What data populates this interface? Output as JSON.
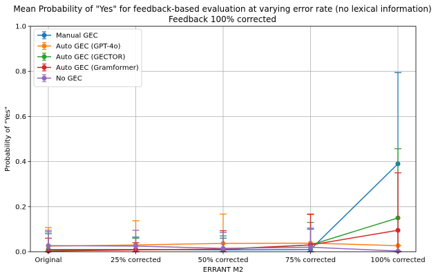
{
  "chart_data": {
    "type": "line",
    "title": "Mean Probability of \"Yes\" for feedback-based evaluation at varying error rate (no lexical information)",
    "subtitle": "Feedback 100% corrected",
    "xlabel": "ERRANT M2",
    "ylabel": "Probability of \"Yes\"",
    "categories": [
      "Original",
      "25% corrected",
      "50% corrected",
      "75% corrected",
      "100% corrected"
    ],
    "ylim": [
      0,
      1.0
    ],
    "yticks": [
      "0.0",
      "0.2",
      "0.4",
      "0.6",
      "0.8",
      "1.0"
    ],
    "grid": true,
    "legend_position": "top-left",
    "error_bars": true,
    "series": [
      {
        "name": "Manual GEC",
        "color": "#1f77b4",
        "values": [
          0.01,
          0.01,
          0.008,
          0.01,
          0.39
        ],
        "err_low": [
          0.0,
          0.0,
          0.0,
          0.0,
          0.0
        ],
        "err_high": [
          0.08,
          0.065,
          0.06,
          0.1,
          0.795
        ]
      },
      {
        "name": "Auto GEC (GPT-4o)",
        "color": "#ff7f0e",
        "values": [
          0.025,
          0.03,
          0.037,
          0.038,
          0.027
        ],
        "err_low": [
          0.0,
          0.0,
          0.0,
          0.0,
          0.0
        ],
        "err_high": [
          0.107,
          0.137,
          0.167,
          0.165,
          0.027
        ]
      },
      {
        "name": "Auto GEC (GECTOR)",
        "color": "#2ca02c",
        "values": [
          0.008,
          0.01,
          0.01,
          0.03,
          0.15
        ],
        "err_low": [
          0.0,
          0.0,
          0.0,
          0.0,
          0.0
        ],
        "err_high": [
          0.088,
          0.06,
          0.07,
          0.13,
          0.457
        ]
      },
      {
        "name": "Auto GEC (Gramformer)",
        "color": "#d62728",
        "values": [
          0.003,
          0.008,
          0.012,
          0.03,
          0.095
        ],
        "err_low": [
          0.0,
          0.0,
          0.0,
          0.0,
          0.0
        ],
        "err_high": [
          0.06,
          0.04,
          0.093,
          0.167,
          0.35
        ]
      },
      {
        "name": "No GEC",
        "color": "#9467bd",
        "values": [
          0.027,
          0.025,
          0.015,
          0.02,
          0.003
        ],
        "err_low": [
          0.0,
          0.0,
          0.0,
          0.0,
          0.0
        ],
        "err_high": [
          0.095,
          0.095,
          0.085,
          0.105,
          0.003
        ]
      }
    ]
  }
}
